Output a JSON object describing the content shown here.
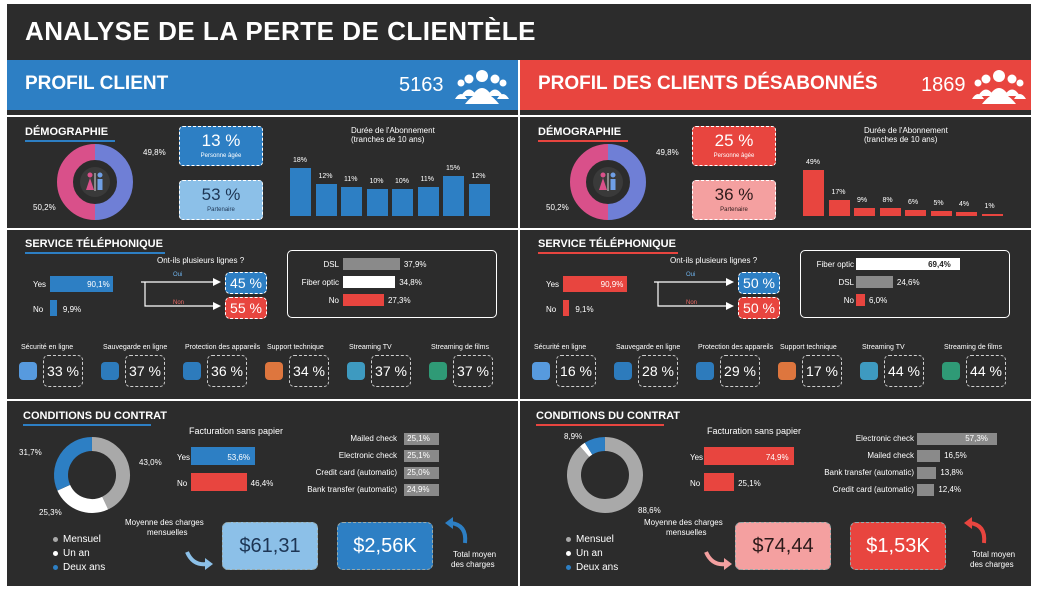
{
  "title": "ANALYSE DE LA PERTE DE CLIENTÈLE",
  "colors": {
    "blue": "#2d7fc4",
    "red": "#e8453f",
    "lightblue": "#8cc0e8",
    "pink": "#f4a0a0",
    "gray": "#8a8a8a"
  },
  "left": {
    "banner_title": "PROFIL CLIENT",
    "count": "5163",
    "demo": {
      "title": "DÉMOGRAPHIE",
      "pct_male": "49,8%",
      "pct_female": "50,2%",
      "senior_value": "13 %",
      "senior_label": "Personne âgée",
      "partner_value": "53 %",
      "partner_label": "Partenaire",
      "tenure_title_1": "Durée de l'Abonnement",
      "tenure_title_2": "(tranches de 10 ans)",
      "tenure": [
        {
          "v": 18,
          "l": "18%"
        },
        {
          "v": 12,
          "l": "12%"
        },
        {
          "v": 11,
          "l": "11%"
        },
        {
          "v": 10,
          "l": "10%"
        },
        {
          "v": 10,
          "l": "10%"
        },
        {
          "v": 11,
          "l": "11%"
        },
        {
          "v": 15,
          "l": "15%"
        },
        {
          "v": 12,
          "l": "12%"
        }
      ]
    },
    "phone": {
      "title": "SERVICE TÉLÉPHONIQUE",
      "multi_title": "Ont-ils plusieurs lignes ?",
      "yes_label": "Yes",
      "yes_pct": "90,1%",
      "yes_val": 90.1,
      "no_label": "No",
      "no_pct": "9,9%",
      "no_val": 9.9,
      "oui_label": "Oui",
      "oui_pct": "45 %",
      "non_label": "Non",
      "non_pct": "55 %",
      "internet": [
        {
          "label": "DSL",
          "pct": "37,9%",
          "val": 37.9,
          "color": "#8a8a8a"
        },
        {
          "label": "Fiber optic",
          "pct": "34,8%",
          "val": 34.8,
          "color": "#ffffff"
        },
        {
          "label": "No",
          "pct": "27,3%",
          "val": 27.3,
          "color": "#e8453f"
        }
      ],
      "services": [
        {
          "label": "Sécurité en ligne",
          "pct": "33 %"
        },
        {
          "label": "Sauvegarde en ligne",
          "pct": "37 %"
        },
        {
          "label": "Protection des appareils",
          "pct": "36 %"
        },
        {
          "label": "Support technique",
          "pct": "34 %"
        },
        {
          "label": "Streaming TV",
          "pct": "37 %"
        },
        {
          "label": "Streaming de films",
          "pct": "37 %"
        }
      ]
    },
    "contract": {
      "title": "CONDITIONS DU CONTRAT",
      "donut": [
        {
          "label": "Mensuel",
          "pct": "43,0%",
          "val": 43.0,
          "color": "#a9a9a9"
        },
        {
          "label": "Un an",
          "pct": "25,3%",
          "val": 25.3,
          "color": "#ffffff"
        },
        {
          "label": "Deux ans",
          "pct": "31,7%",
          "val": 31.7,
          "color": "#2d7fc4"
        }
      ],
      "paperless_title": "Facturation sans papier",
      "pl_yes_label": "Yes",
      "pl_yes_pct": "53,6%",
      "pl_yes_val": 53.6,
      "pl_no_label": "No",
      "pl_no_pct": "46,4%",
      "pl_no_val": 46.4,
      "payments": [
        {
          "label": "Mailed check",
          "pct": "25,1%",
          "val": 25.1
        },
        {
          "label": "Electronic check",
          "pct": "25,1%",
          "val": 25.1
        },
        {
          "label": "Credit card (automatic)",
          "pct": "25,0%",
          "val": 25.0
        },
        {
          "label": "Bank transfer (automatic)",
          "pct": "24,9%",
          "val": 24.9
        }
      ],
      "legend": [
        "Mensuel",
        "Un an",
        "Deux ans"
      ],
      "monthly_label_1": "Moyenne des charges",
      "monthly_label_2": "mensuelles",
      "monthly_value": "$61,31",
      "total_value": "$2,56K",
      "total_label_1": "Total moyen",
      "total_label_2": "des charges"
    }
  },
  "right": {
    "banner_title": "PROFIL DES CLIENTS DÉSABONNÉS",
    "count": "1869",
    "demo": {
      "title": "DÉMOGRAPHIE",
      "pct_male": "49,8%",
      "pct_female": "50,2%",
      "senior_value": "25 %",
      "senior_label": "Personne âgée",
      "partner_value": "36 %",
      "partner_label": "Partenaire",
      "tenure_title_1": "Durée de l'Abonnement",
      "tenure_title_2": "(tranches de 10 ans)",
      "tenure": [
        {
          "v": 49,
          "l": "49%"
        },
        {
          "v": 17,
          "l": "17%"
        },
        {
          "v": 9,
          "l": "9%"
        },
        {
          "v": 8,
          "l": "8%"
        },
        {
          "v": 6,
          "l": "6%"
        },
        {
          "v": 5,
          "l": "5%"
        },
        {
          "v": 4,
          "l": "4%"
        },
        {
          "v": 1,
          "l": "1%"
        }
      ]
    },
    "phone": {
      "title": "SERVICE TÉLÉPHONIQUE",
      "multi_title": "Ont-ils plusieurs lignes ?",
      "yes_label": "Yes",
      "yes_pct": "90,9%",
      "yes_val": 90.9,
      "no_label": "No",
      "no_pct": "9,1%",
      "no_val": 9.1,
      "oui_label": "Oui",
      "oui_pct": "50 %",
      "non_label": "Non",
      "non_pct": "50 %",
      "internet": [
        {
          "label": "Fiber optic",
          "pct": "69,4%",
          "val": 69.4,
          "color": "#ffffff"
        },
        {
          "label": "DSL",
          "pct": "24,6%",
          "val": 24.6,
          "color": "#8a8a8a"
        },
        {
          "label": "No",
          "pct": "6,0%",
          "val": 6.0,
          "color": "#e8453f"
        }
      ],
      "services": [
        {
          "label": "Sécurité en ligne",
          "pct": "16 %"
        },
        {
          "label": "Sauvegarde en ligne",
          "pct": "28 %"
        },
        {
          "label": "Protection des appareils",
          "pct": "29 %"
        },
        {
          "label": "Support technique",
          "pct": "17 %"
        },
        {
          "label": "Streaming TV",
          "pct": "44 %"
        },
        {
          "label": "Streaming de films",
          "pct": "44 %"
        }
      ]
    },
    "contract": {
      "title": "CONDITIONS DU CONTRAT",
      "donut": [
        {
          "label": "Mensuel",
          "pct": "88,6%",
          "val": 88.6,
          "color": "#a9a9a9"
        },
        {
          "label": "Un an",
          "pct": "",
          "val": 2.5,
          "color": "#ffffff"
        },
        {
          "label": "Deux ans",
          "pct": "8,9%",
          "val": 8.9,
          "color": "#2d7fc4"
        }
      ],
      "paperless_title": "Facturation sans papier",
      "pl_yes_label": "Yes",
      "pl_yes_pct": "74,9%",
      "pl_yes_val": 74.9,
      "pl_no_label": "No",
      "pl_no_pct": "25,1%",
      "pl_no_val": 25.1,
      "payments": [
        {
          "label": "Electronic check",
          "pct": "57,3%",
          "val": 57.3
        },
        {
          "label": "Mailed check",
          "pct": "16,5%",
          "val": 16.5
        },
        {
          "label": "Bank transfer (automatic)",
          "pct": "13,8%",
          "val": 13.8
        },
        {
          "label": "Credit card (automatic)",
          "pct": "12,4%",
          "val": 12.4
        }
      ],
      "legend": [
        "Mensuel",
        "Un an",
        "Deux ans"
      ],
      "monthly_label_1": "Moyenne des charges",
      "monthly_label_2": "mensuelles",
      "monthly_value": "$74,44",
      "total_value": "$1,53K",
      "total_label_1": "Total moyen",
      "total_label_2": "des charges"
    }
  }
}
